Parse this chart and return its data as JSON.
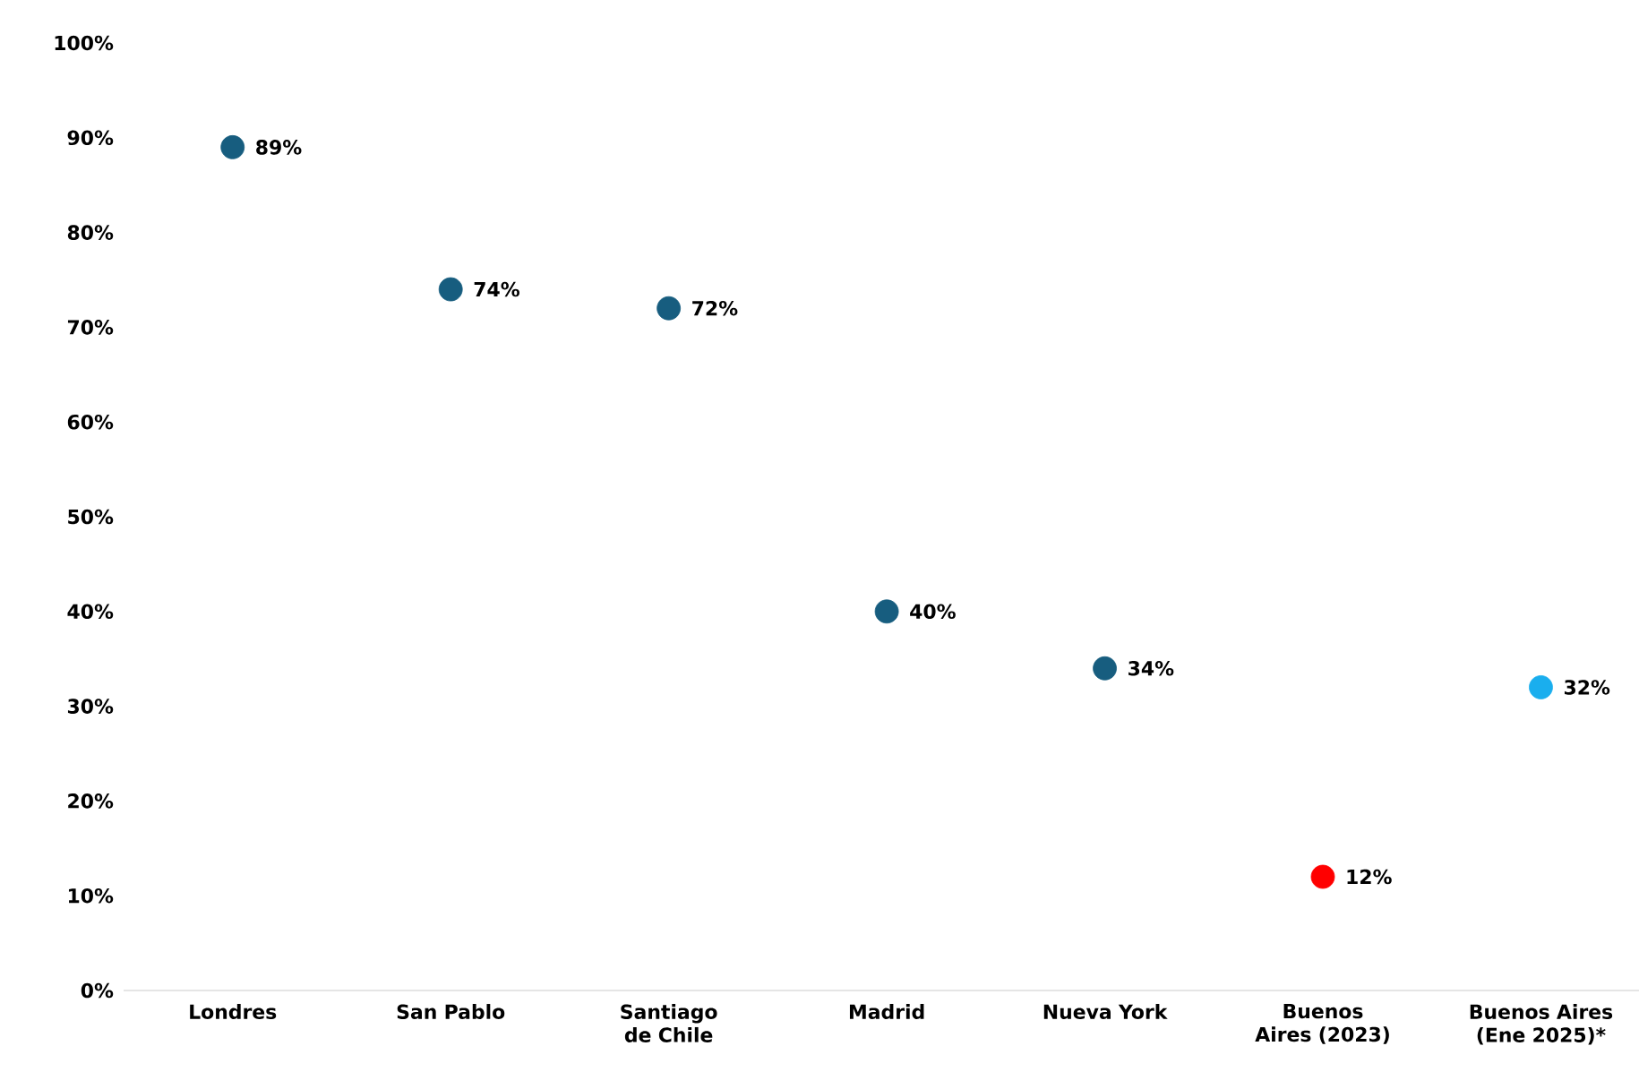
{
  "chart_data": {
    "type": "scatter",
    "categories": [
      "Londres",
      "San Pablo",
      "Santiago de Chile",
      "Madrid",
      "Nueva York",
      "Buenos Aires (2023)",
      "Buenos Aires (Ene 2025)*"
    ],
    "values": [
      89,
      74,
      72,
      40,
      34,
      12,
      32
    ],
    "value_labels": [
      "89%",
      "74%",
      "72%",
      "40%",
      "34%",
      "12%",
      "32%"
    ],
    "colors": [
      "#175d7f",
      "#175d7f",
      "#175d7f",
      "#175d7f",
      "#175d7f",
      "#ff0000",
      "#1aaeee"
    ],
    "marker": "circle",
    "ylim": [
      0,
      100
    ],
    "yticks": [
      {
        "value": 0,
        "label": "0%"
      },
      {
        "value": 10,
        "label": "10%"
      },
      {
        "value": 20,
        "label": "20%"
      },
      {
        "value": 30,
        "label": "30%"
      },
      {
        "value": 40,
        "label": "40%"
      },
      {
        "value": 50,
        "label": "50%"
      },
      {
        "value": 60,
        "label": "60%"
      },
      {
        "value": 70,
        "label": "70%"
      },
      {
        "value": 80,
        "label": "80%"
      },
      {
        "value": 90,
        "label": "90%"
      },
      {
        "value": 100,
        "label": "100%"
      }
    ]
  }
}
